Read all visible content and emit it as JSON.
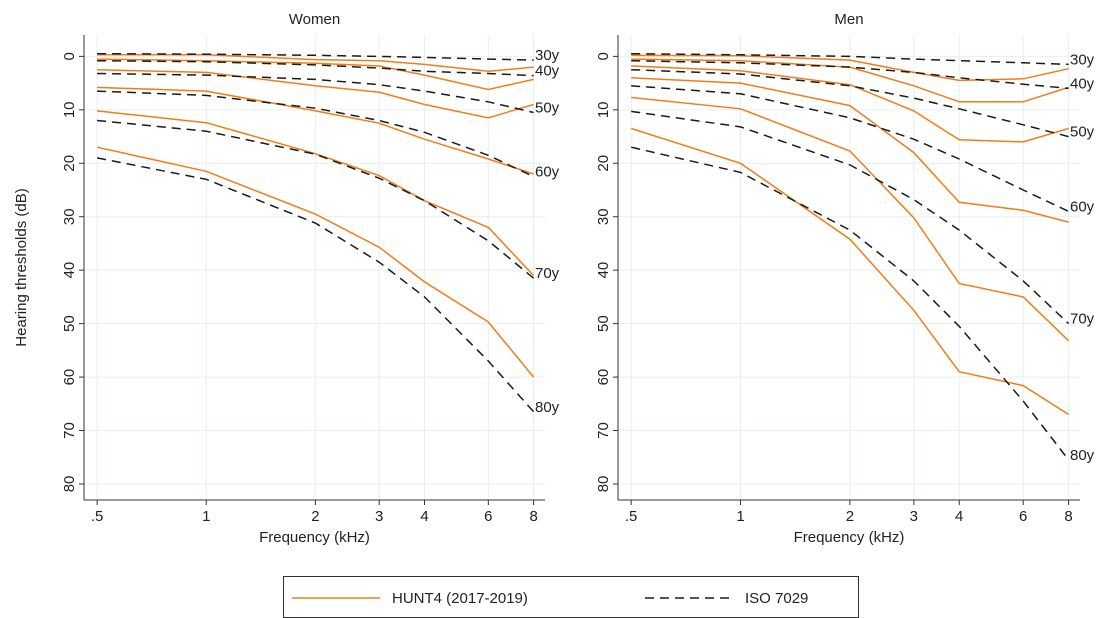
{
  "chart_data": [
    {
      "type": "line",
      "title": "Women",
      "ylabel": "Hearing thresholds (dB)",
      "xlabel": "Frequency (kHz)",
      "xscale": "log",
      "yaxis_reversed": true,
      "grid": true,
      "x": [
        0.5,
        1,
        2,
        3,
        4,
        6,
        8
      ],
      "xlim": [
        0.46,
        8.6
      ],
      "xticks": [
        {
          "value": 0.5,
          "label": ".5"
        },
        1,
        2,
        3,
        4,
        6,
        8
      ],
      "ylim": [
        -4,
        83
      ],
      "yticks": [
        0,
        10,
        20,
        30,
        40,
        50,
        60,
        70,
        80
      ],
      "series": [
        {
          "name": "30y",
          "values": [
            [
              -0.3,
              -0.3,
              0.6,
              0.8,
              1.5,
              2.8,
              2.0
            ],
            [
              -0.5,
              -0.4,
              -0.2,
              0,
              0.2,
              0.5,
              0.7
            ]
          ]
        },
        {
          "name": "40y",
          "values": [
            [
              0.5,
              0.8,
              1.3,
              1.8,
              3.5,
              6.2,
              4.3
            ],
            [
              0.8,
              1.0,
              1.6,
              2.2,
              2.8,
              3.2,
              3.6
            ]
          ]
        },
        {
          "name": "50y",
          "values": [
            [
              2.5,
              3.0,
              5.5,
              6.7,
              9,
              11.5,
              9
            ],
            [
              3.2,
              3.5,
              4.3,
              5.3,
              6.5,
              8.5,
              10.5
            ]
          ]
        },
        {
          "name": "60y",
          "values": [
            [
              5.8,
              6.5,
              10.2,
              12.5,
              15.5,
              19.2,
              22
            ],
            [
              6.5,
              7.3,
              9.7,
              12,
              14.2,
              18.5,
              22.5
            ]
          ]
        },
        {
          "name": "70y",
          "values": [
            [
              10.2,
              12.4,
              18.2,
              22.3,
              27,
              32,
              41
            ],
            [
              12,
              14,
              18.3,
              22.8,
              27,
              34.5,
              41.5
            ]
          ]
        },
        {
          "name": "80y",
          "values": [
            [
              17,
              21.5,
              29.5,
              35.7,
              42.2,
              49.7,
              60
            ],
            [
              19,
              23,
              31.2,
              38.5,
              45,
              57,
              66.5
            ]
          ]
        }
      ]
    },
    {
      "type": "line",
      "title": "Men",
      "xlabel": "Frequency (kHz)",
      "xscale": "log",
      "yaxis_reversed": true,
      "grid": true,
      "x": [
        0.5,
        1,
        2,
        3,
        4,
        6,
        8
      ],
      "xlim": [
        0.46,
        8.6
      ],
      "xticks": [
        {
          "value": 0.5,
          "label": ".5"
        },
        1,
        2,
        3,
        4,
        6,
        8
      ],
      "ylim": [
        -4,
        83
      ],
      "yticks": [
        0,
        10,
        20,
        30,
        40,
        50,
        60,
        70,
        80
      ],
      "series": [
        {
          "name": "30y",
          "values": [
            [
              -0.2,
              -0.1,
              0.7,
              3,
              4.5,
              4.2,
              2.3
            ],
            [
              -0.5,
              -0.3,
              0,
              0.5,
              0.8,
              1.2,
              1.5
            ]
          ]
        },
        {
          "name": "40y",
          "values": [
            [
              0.5,
              0.8,
              2,
              5.5,
              8.5,
              8.5,
              5.8
            ],
            [
              0.8,
              1.2,
              2,
              3,
              4,
              5.2,
              6
            ]
          ]
        },
        {
          "name": "50y",
          "values": [
            [
              1.8,
              2.7,
              5.3,
              10.2,
              15.6,
              16,
              13.5
            ],
            [
              2.5,
              3.3,
              5.5,
              7.8,
              9.8,
              12.8,
              15
            ]
          ]
        },
        {
          "name": "60y",
          "values": [
            [
              4,
              5,
              9.2,
              18,
              27.3,
              28.8,
              31
            ],
            [
              5.5,
              7,
              11.5,
              15.5,
              19.2,
              25,
              29
            ]
          ]
        },
        {
          "name": "70y",
          "values": [
            [
              7.7,
              9.8,
              17.7,
              30.2,
              42.5,
              45,
              53.2
            ],
            [
              10.3,
              13.2,
              20.3,
              26.8,
              32.5,
              42,
              50
            ]
          ]
        },
        {
          "name": "80y",
          "values": [
            [
              13.5,
              20,
              34.2,
              47.5,
              59,
              61.6,
              67
            ],
            [
              17,
              21.7,
              32.5,
              42,
              50.5,
              64.5,
              75.5
            ]
          ]
        }
      ]
    }
  ],
  "legend": [
    {
      "name": "HUNT4 (2017-2019)",
      "color": "#f07d1a",
      "dash": "solid"
    },
    {
      "name": "ISO 7029",
      "color": "#1a1a1a",
      "dash": "dashed"
    }
  ]
}
